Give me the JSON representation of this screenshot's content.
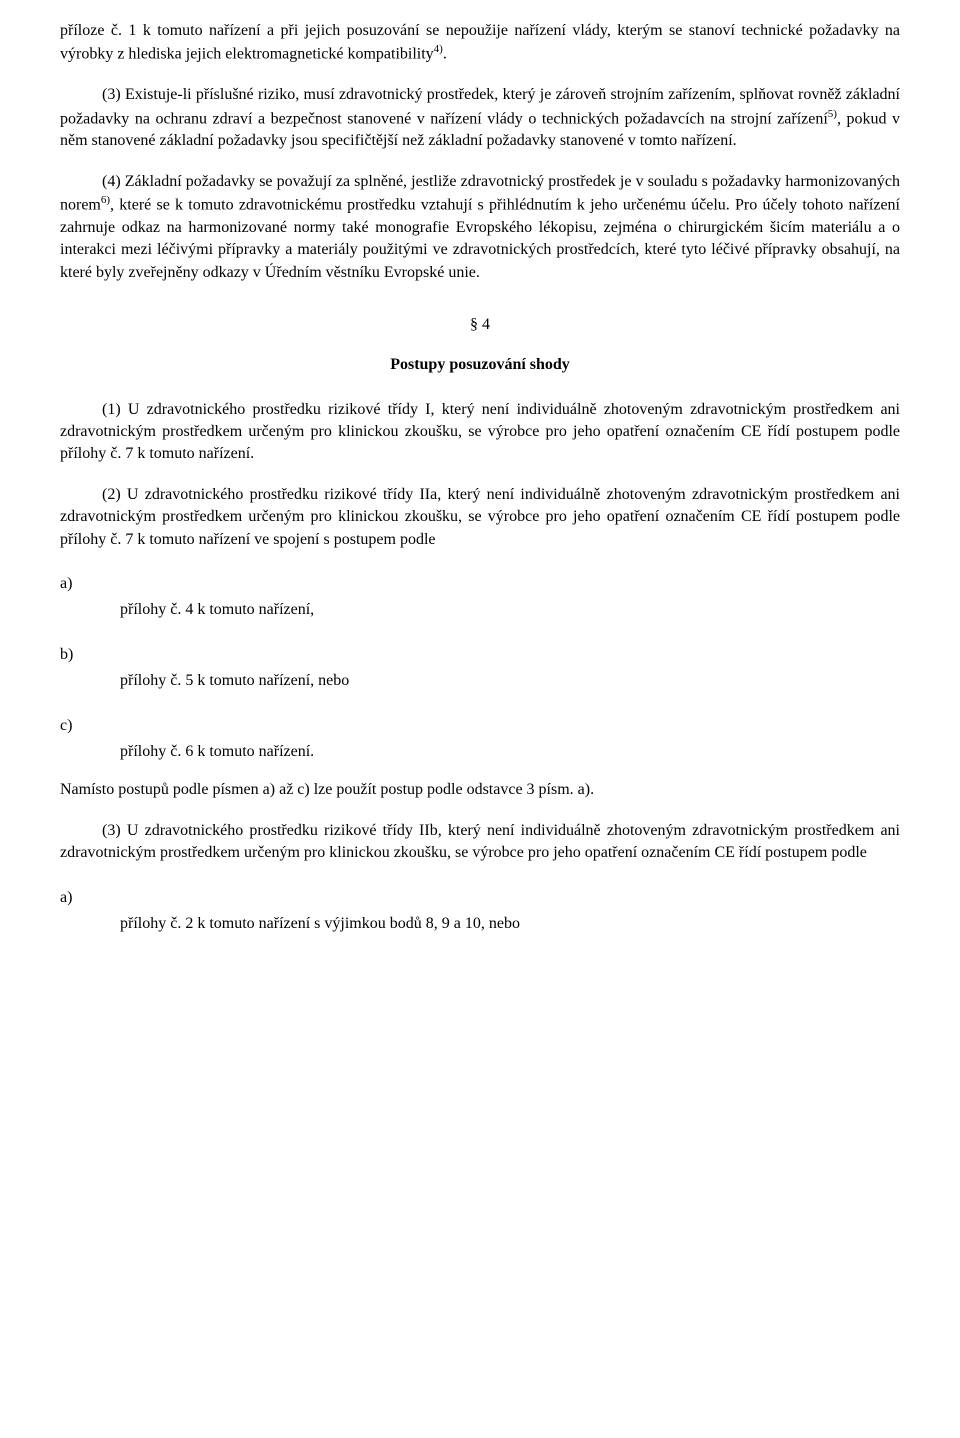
{
  "colors": {
    "background": "#ffffff",
    "text": "#000000"
  },
  "typography": {
    "font_family": "Times New Roman",
    "body_fontsize": 16,
    "sup_fontsize": 11,
    "title_weight": "bold"
  },
  "paragraphs": {
    "p0a": "příloze č. 1 k tomuto nařízení a při jejich posuzování se nepoužije nařízení vlády, kterým se stanoví technické požadavky na výrobky z hlediska jejich elektromagnetické kompatibility",
    "p0_sup": "4)",
    "p0b": ".",
    "p1a": "(3) Existuje-li příslušné riziko, musí zdravotnický prostředek, který je zároveň strojním zařízením, splňovat rovněž základní požadavky na ochranu zdraví a bezpečnost stanovené v nařízení vlády o technických požadavcích na strojní zařízení",
    "p1_sup": "5)",
    "p1b": ", pokud v něm stanovené základní požadavky jsou specifičtější než základní požadavky stanovené v tomto nařízení.",
    "p2a": "(4) Základní požadavky se považují za splněné, jestliže zdravotnický prostředek je v souladu s požadavky harmonizovaných norem",
    "p2_sup": "6)",
    "p2b": ", které se k tomuto zdravotnickému prostředku vztahují s přihlédnutím k jeho určenému účelu. Pro účely tohoto nařízení zahrnuje odkaz na harmonizované normy také monografie Evropského lékopisu, zejména o chirurgickém šicím materiálu a o interakci mezi léčivými přípravky a materiály použitými ve zdravotnických prostředcích, které tyto léčivé přípravky obsahují, na které byly zveřejněny odkazy v Úředním věstníku Evropské unie."
  },
  "section4": {
    "number": "§ 4",
    "title": "Postupy posuzování shody",
    "p1": "(1) U zdravotnického prostředku rizikové třídy I, který není individuálně zhotoveným zdravotnickým prostředkem ani zdravotnickým prostředkem určeným pro klinickou zkoušku, se výrobce pro jeho opatření označením CE řídí postupem podle přílohy č. 7 k tomuto nařízení.",
    "p2": "(2) U zdravotnického prostředku rizikové třídy IIa, který není individuálně zhotoveným zdravotnickým prostředkem ani zdravotnickým prostředkem určeným pro klinickou zkoušku, se výrobce pro jeho opatření označením CE řídí postupem podle přílohy č. 7 k tomuto nařízení ve spojení s postupem podle",
    "list_a_letter": "a)",
    "list_a_text": "přílohy č. 4 k tomuto nařízení,",
    "list_b_letter": "b)",
    "list_b_text": "přílohy č. 5 k tomuto nařízení, nebo",
    "list_c_letter": "c)",
    "list_c_text": "přílohy č. 6 k tomuto nařízení.",
    "closing": "Namísto postupů podle písmen a) až c) lze použít postup podle odstavce 3 písm. a).",
    "p3": "(3) U zdravotnického prostředku rizikové třídy IIb, který není individuálně zhotoveným zdravotnickým prostředkem ani zdravotnickým prostředkem určeným pro klinickou zkoušku, se výrobce pro jeho opatření označením CE řídí postupem podle",
    "list2_a_letter": "a)",
    "list2_a_text": "přílohy č. 2 k tomuto nařízení s výjimkou bodů 8, 9 a 10, nebo"
  }
}
